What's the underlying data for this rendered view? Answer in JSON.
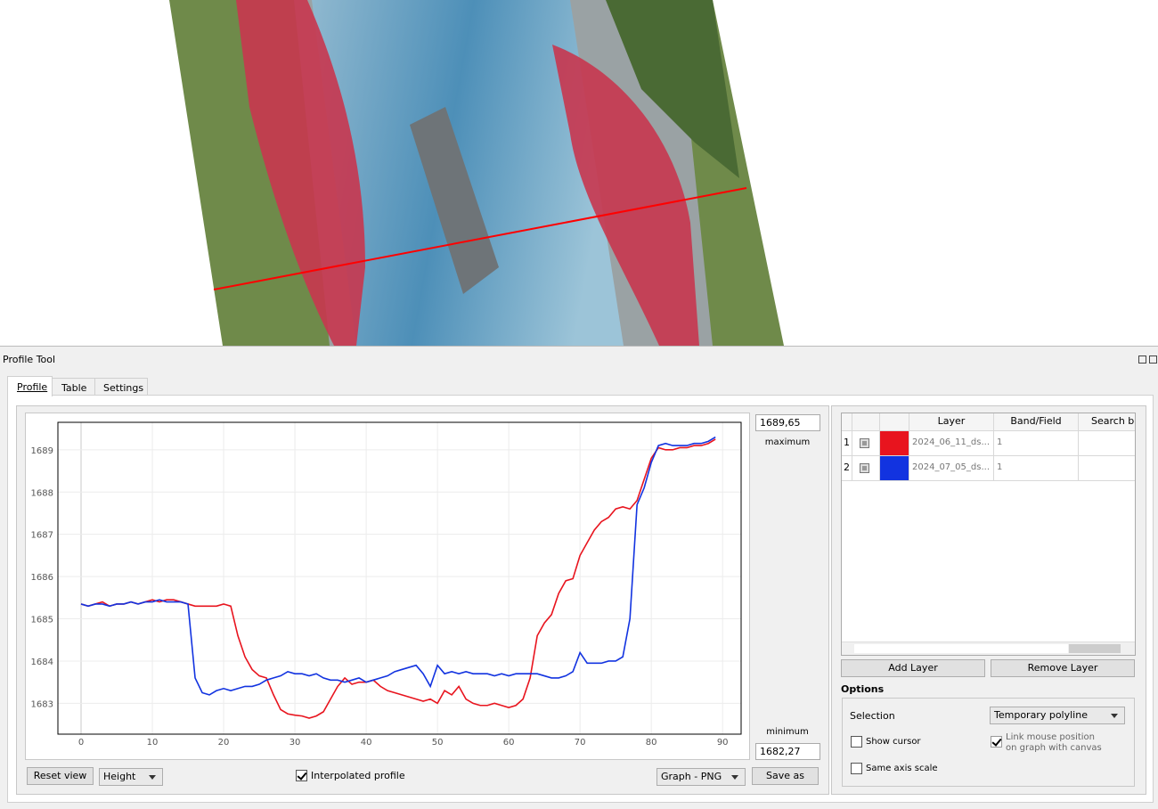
{
  "window_title": "Profile Tool",
  "tabs": [
    "Profile",
    "Table",
    "Settings"
  ],
  "chart_data": {
    "type": "line",
    "x": [
      0,
      1,
      2,
      3,
      4,
      5,
      6,
      7,
      8,
      9,
      10,
      11,
      12,
      13,
      14,
      15,
      16,
      17,
      18,
      19,
      20,
      21,
      22,
      23,
      24,
      25,
      26,
      27,
      28,
      29,
      30,
      31,
      32,
      33,
      34,
      35,
      36,
      37,
      38,
      39,
      40,
      41,
      42,
      43,
      44,
      45,
      46,
      47,
      48,
      49,
      50,
      51,
      52,
      53,
      54,
      55,
      56,
      57,
      58,
      59,
      60,
      61,
      62,
      63,
      64,
      65,
      66,
      67,
      68,
      69,
      70,
      71,
      72,
      73,
      74,
      75,
      76,
      77,
      78,
      79,
      80,
      81,
      82,
      83,
      84,
      85,
      86,
      87,
      88,
      89
    ],
    "series": [
      {
        "color": "#e8141e",
        "values": [
          1685.35,
          1685.3,
          1685.35,
          1685.4,
          1685.3,
          1685.35,
          1685.35,
          1685.4,
          1685.35,
          1685.4,
          1685.45,
          1685.4,
          1685.45,
          1685.45,
          1685.4,
          1685.35,
          1685.3,
          1685.3,
          1685.3,
          1685.3,
          1685.35,
          1685.3,
          1684.6,
          1684.1,
          1683.8,
          1683.65,
          1683.6,
          1683.2,
          1682.85,
          1682.75,
          1682.72,
          1682.7,
          1682.65,
          1682.7,
          1682.8,
          1683.1,
          1683.4,
          1683.6,
          1683.45,
          1683.5,
          1683.5,
          1683.55,
          1683.4,
          1683.3,
          1683.25,
          1683.2,
          1683.15,
          1683.1,
          1683.05,
          1683.1,
          1683.0,
          1683.3,
          1683.2,
          1683.4,
          1683.1,
          1683.0,
          1682.95,
          1682.95,
          1683.0,
          1682.95,
          1682.9,
          1682.95,
          1683.1,
          1683.6,
          1684.6,
          1684.9,
          1685.1,
          1685.6,
          1685.9,
          1685.95,
          1686.5,
          1686.8,
          1687.1,
          1687.3,
          1687.4,
          1687.6,
          1687.65,
          1687.6,
          1687.8,
          1688.3,
          1688.8,
          1689.05,
          1689.0,
          1689.0,
          1689.05,
          1689.05,
          1689.1,
          1689.1,
          1689.15,
          1689.25
        ]
      },
      {
        "color": "#1233e0",
        "values": [
          1685.35,
          1685.3,
          1685.35,
          1685.35,
          1685.3,
          1685.35,
          1685.35,
          1685.4,
          1685.35,
          1685.4,
          1685.4,
          1685.45,
          1685.4,
          1685.4,
          1685.4,
          1685.35,
          1683.6,
          1683.25,
          1683.2,
          1683.3,
          1683.35,
          1683.3,
          1683.35,
          1683.4,
          1683.4,
          1683.45,
          1683.55,
          1683.6,
          1683.65,
          1683.75,
          1683.7,
          1683.7,
          1683.65,
          1683.7,
          1683.6,
          1683.55,
          1683.55,
          1683.5,
          1683.55,
          1683.6,
          1683.5,
          1683.55,
          1683.6,
          1683.65,
          1683.75,
          1683.8,
          1683.85,
          1683.9,
          1683.7,
          1683.4,
          1683.9,
          1683.7,
          1683.75,
          1683.7,
          1683.75,
          1683.7,
          1683.7,
          1683.7,
          1683.65,
          1683.7,
          1683.65,
          1683.7,
          1683.7,
          1683.7,
          1683.7,
          1683.65,
          1683.6,
          1683.6,
          1683.65,
          1683.75,
          1684.2,
          1683.95,
          1683.95,
          1683.95,
          1684.0,
          1684.0,
          1684.1,
          1685.0,
          1687.7,
          1688.1,
          1688.7,
          1689.1,
          1689.15,
          1689.1,
          1689.1,
          1689.1,
          1689.15,
          1689.15,
          1689.2,
          1689.3
        ]
      }
    ],
    "xlim": [
      -3.25,
      92.6
    ],
    "ylim": [
      1682.27,
      1689.65
    ],
    "xticks": [
      0,
      10,
      20,
      30,
      40,
      50,
      60,
      70,
      80,
      90
    ],
    "yticks": [
      1683,
      1684,
      1685,
      1686,
      1687,
      1688,
      1689
    ],
    "grid": true
  },
  "axis_controls": {
    "maximum_value": "1689,65",
    "maximum_label": "maximum",
    "minimum_label": "minimum",
    "minimum_value": "1682,27"
  },
  "bottom_controls": {
    "reset": "Reset view",
    "mode": "Height",
    "interpolated": "Interpolated profile",
    "export": "Graph - PNG",
    "save": "Save as"
  },
  "layer_table": {
    "headers": [
      "Layer",
      "Band/Field",
      "Search bu"
    ],
    "rows": [
      {
        "index": "1",
        "layer": "2024_06_11_ds...",
        "band": "1"
      },
      {
        "index": "2",
        "layer": "2024_07_05_ds...",
        "band": "1"
      }
    ]
  },
  "layer_buttons": [
    "Add Layer",
    "Remove Layer"
  ],
  "options": {
    "title": "Options",
    "selection_label": "Selection",
    "selection_value": "Temporary polyline",
    "show_cursor": "Show cursor",
    "link_mouse": [
      "Link mouse position",
      "on graph with canvas"
    ],
    "same_axis": "Same axis scale"
  }
}
